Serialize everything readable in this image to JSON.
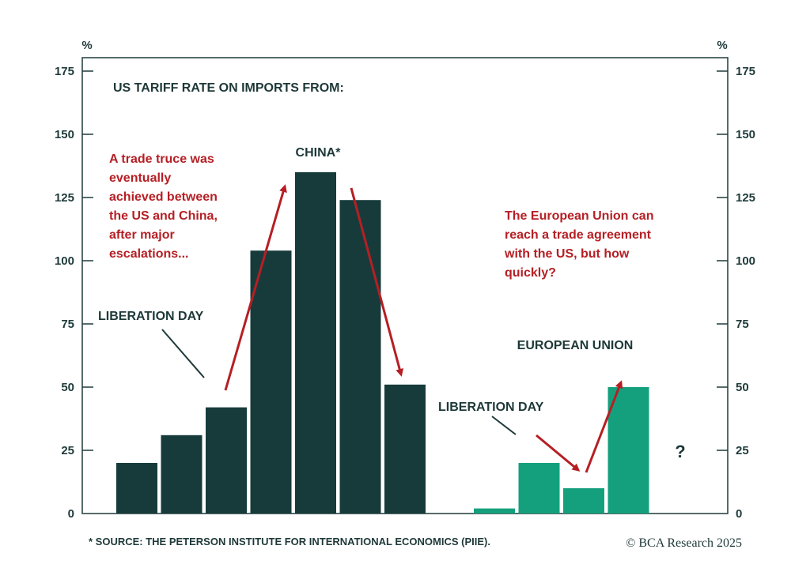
{
  "chart_data": {
    "type": "bar",
    "title": "US TARIFF RATE ON IMPORTS FROM:",
    "ylim": [
      0,
      175
    ],
    "yticks": [
      0,
      25,
      50,
      75,
      100,
      125,
      150,
      175
    ],
    "y_unit_left": "%",
    "y_unit_right": "%",
    "grid": false,
    "series": [
      {
        "name": "CHINA*",
        "color": "#173b3b",
        "values": [
          20,
          31,
          42,
          104,
          135,
          124,
          51
        ]
      },
      {
        "name": "EUROPEAN UNION",
        "color": "#14a07d",
        "values": [
          2,
          20,
          10,
          50
        ]
      }
    ],
    "annotations": {
      "china_liberation_day": "LIBERATION DAY",
      "eu_liberation_day": "LIBERATION DAY",
      "china_note": [
        "A trade truce was",
        "eventually",
        "achieved between",
        "the US and China,",
        "after major",
        "escalations..."
      ],
      "eu_note": [
        "The European Union can",
        "reach a trade agreement",
        "with the US, but how",
        "quickly?"
      ],
      "question_mark": "?"
    },
    "source": "* SOURCE: THE PETERSON INSTITUTE FOR INTERNATIONAL ECONOMICS (PIIE).",
    "brand": "© BCA Research 2025"
  },
  "colors": {
    "frame": "#1f3a3a",
    "annotation": "#b51f24"
  }
}
